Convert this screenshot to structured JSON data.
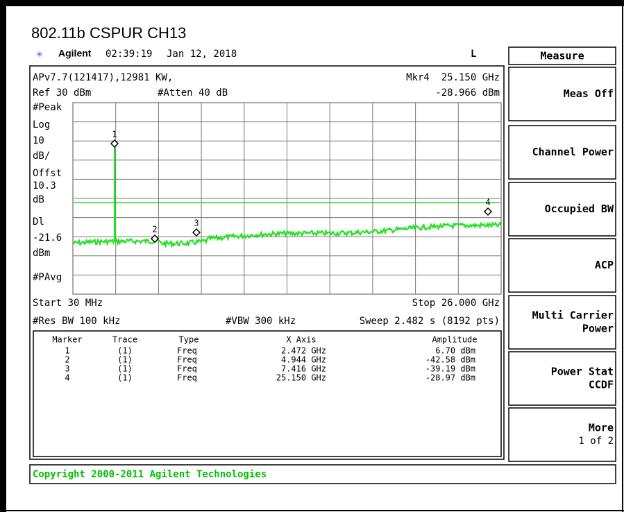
{
  "title": "802.11b CSPUR CH13",
  "header": {
    "brand": "Agilent",
    "time": "02:39:19",
    "date": "Jan 12, 2018",
    "mode": "L"
  },
  "menu_title": "Measure",
  "panel": {
    "top_left": "APv7.7(121417),12981 KW,",
    "marker_readout": "Mkr4  25.150 GHz",
    "ref": "Ref 30 dBm",
    "atten": "#Atten 40 dB",
    "marker_amplitude": "-28.966 dBm",
    "side_labels": [
      "#Peak",
      "Log",
      "10",
      "dB/",
      "Offst",
      "10.3",
      "dB",
      "Dl",
      "-21.6",
      "dBm",
      "#PAvg"
    ],
    "marker_labels": [
      "1",
      "2",
      "3",
      "4"
    ],
    "start": "Start 30 MHz",
    "stop": "Stop 26.000 GHz",
    "rbw": "#Res BW 100 kHz",
    "vbw": "#VBW 300 kHz",
    "sweep": "Sweep 2.482 s (8192 pts)"
  },
  "table": {
    "columns": [
      "Marker",
      "Trace",
      "Type",
      "X Axis",
      "Amplitude"
    ],
    "rows": [
      [
        "1",
        "(1)",
        "Freq",
        "2.472 GHz",
        "6.70 dBm"
      ],
      [
        "2",
        "(1)",
        "Freq",
        "4.944 GHz",
        "-42.58 dBm"
      ],
      [
        "3",
        "(1)",
        "Freq",
        "7.416 GHz",
        "-39.19 dBm"
      ],
      [
        "4",
        "(1)",
        "Freq",
        "25.150 GHz",
        "-28.97 dBm"
      ]
    ]
  },
  "softkeys": [
    {
      "lines": [
        "Meas Off"
      ]
    },
    {
      "lines": [
        "Channel Power"
      ]
    },
    {
      "lines": [
        "Occupied BW"
      ]
    },
    {
      "lines": [
        "ACP"
      ]
    },
    {
      "lines": [
        "Multi Carrier",
        "Power"
      ]
    },
    {
      "lines": [
        "Power Stat",
        "CCDF"
      ]
    },
    {
      "lines": [
        "More"
      ],
      "sub": "1 of 2"
    }
  ],
  "status": "Copyright 2000-2011 Agilent Technologies"
}
